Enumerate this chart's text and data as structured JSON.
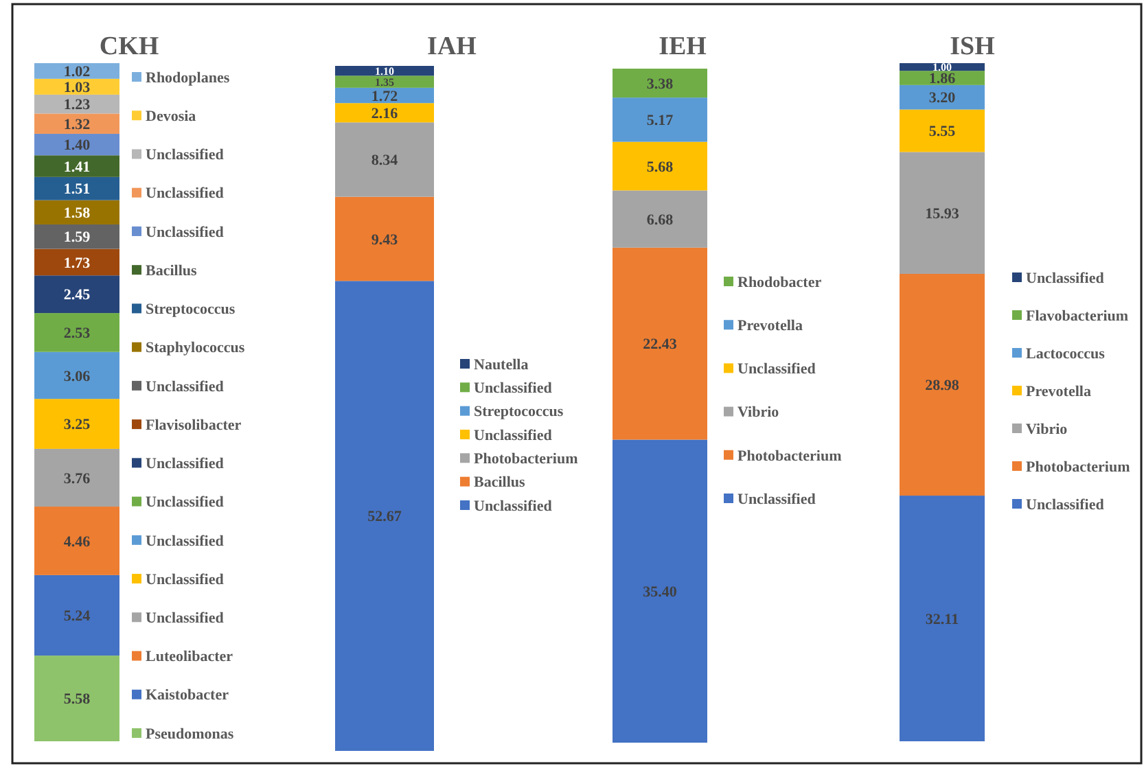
{
  "chart_data": [
    {
      "type": "bar",
      "stacked": true,
      "title": "CKH",
      "categories": [
        null
      ],
      "legend": "right",
      "series": [
        {
          "name": "Pseudomonas",
          "color": "#8fc36b",
          "values": [
            5.58
          ],
          "value_labels": [
            "5.58"
          ]
        },
        {
          "name": "Kaistobacter",
          "color": "#4472c4",
          "values": [
            5.24
          ],
          "value_labels": [
            "5.24"
          ]
        },
        {
          "name": "Luteolibacter",
          "color": "#ed7d31",
          "values": [
            4.46
          ],
          "value_labels": [
            "4.46"
          ]
        },
        {
          "name": "Unclassified",
          "color": "#a5a5a5",
          "values": [
            3.76
          ],
          "value_labels": [
            "3.76"
          ]
        },
        {
          "name": "Unclassified",
          "color": "#ffc000",
          "values": [
            3.25
          ],
          "value_labels": [
            "3.25"
          ]
        },
        {
          "name": "Unclassified",
          "color": "#5b9bd5",
          "values": [
            3.06
          ],
          "value_labels": [
            "3.06"
          ]
        },
        {
          "name": "Unclassified",
          "color": "#70ad47",
          "values": [
            2.53
          ],
          "value_labels": [
            "2.53"
          ]
        },
        {
          "name": "Unclassified",
          "color": "#264478",
          "values": [
            2.45
          ],
          "value_labels": [
            "2.45"
          ]
        },
        {
          "name": "Flavisolibacter",
          "color": "#9e480e",
          "values": [
            1.73
          ],
          "value_labels": [
            "1.73"
          ]
        },
        {
          "name": "Unclassified",
          "color": "#636363",
          "values": [
            1.59
          ],
          "value_labels": [
            "1.59"
          ]
        },
        {
          "name": "Staphylococcus",
          "color": "#997300",
          "values": [
            1.58
          ],
          "value_labels": [
            "1.58"
          ]
        },
        {
          "name": "Streptococcus",
          "color": "#255e91",
          "values": [
            1.51
          ],
          "value_labels": [
            "1.51"
          ]
        },
        {
          "name": "Bacillus",
          "color": "#43682b",
          "values": [
            1.41
          ],
          "value_labels": [
            "1.41"
          ]
        },
        {
          "name": "Unclassified",
          "color": "#698ed0",
          "values": [
            1.4
          ],
          "value_labels": [
            "1.40"
          ]
        },
        {
          "name": "Unclassified",
          "color": "#f1975a",
          "values": [
            1.32
          ],
          "value_labels": [
            "1.32"
          ]
        },
        {
          "name": "Unclassified",
          "color": "#b7b7b7",
          "values": [
            1.23
          ],
          "value_labels": [
            "1.23"
          ]
        },
        {
          "name": "Devosia",
          "color": "#ffcd33",
          "values": [
            1.03
          ],
          "value_labels": [
            "1.03"
          ]
        },
        {
          "name": "Rhodoplanes",
          "color": "#7cafdd",
          "values": [
            1.02
          ],
          "value_labels": [
            "1.02"
          ]
        }
      ]
    },
    {
      "type": "bar",
      "stacked": true,
      "title": "IAH",
      "categories": [
        null
      ],
      "legend": "right",
      "series": [
        {
          "name": "Unclassified",
          "color": "#4472c4",
          "values": [
            52.67
          ],
          "value_labels": [
            "52.67"
          ]
        },
        {
          "name": "Bacillus",
          "color": "#ed7d31",
          "values": [
            9.43
          ],
          "value_labels": [
            "9.43"
          ]
        },
        {
          "name": "Photobacterium",
          "color": "#a5a5a5",
          "values": [
            8.34
          ],
          "value_labels": [
            "8.34"
          ]
        },
        {
          "name": "Unclassified",
          "color": "#ffc000",
          "values": [
            2.16
          ],
          "value_labels": [
            "2.16"
          ]
        },
        {
          "name": "Streptococcus",
          "color": "#5b9bd5",
          "values": [
            1.72
          ],
          "value_labels": [
            "1.72"
          ]
        },
        {
          "name": "Unclassified",
          "color": "#70ad47",
          "values": [
            1.35
          ],
          "value_labels": [
            "1.35"
          ]
        },
        {
          "name": "Nautella",
          "color": "#264478",
          "values": [
            1.1
          ],
          "value_labels": [
            "1.10"
          ]
        }
      ]
    },
    {
      "type": "bar",
      "stacked": true,
      "title": "IEH",
      "categories": [
        null
      ],
      "legend": "right",
      "series": [
        {
          "name": "Unclassified",
          "color": "#4472c4",
          "values": [
            35.4
          ],
          "value_labels": [
            "35.40"
          ]
        },
        {
          "name": "Photobacterium",
          "color": "#ed7d31",
          "values": [
            22.43
          ],
          "value_labels": [
            "22.43"
          ]
        },
        {
          "name": "Vibrio",
          "color": "#a5a5a5",
          "values": [
            6.68
          ],
          "value_labels": [
            "6.68"
          ]
        },
        {
          "name": "Unclassified",
          "color": "#ffc000",
          "values": [
            5.68
          ],
          "value_labels": [
            "5.68"
          ]
        },
        {
          "name": "Prevotella",
          "color": "#5b9bd5",
          "values": [
            5.17
          ],
          "value_labels": [
            "5.17"
          ]
        },
        {
          "name": "Rhodobacter",
          "color": "#70ad47",
          "values": [
            3.38
          ],
          "value_labels": [
            "3.38"
          ]
        }
      ]
    },
    {
      "type": "bar",
      "stacked": true,
      "title": "ISH",
      "categories": [
        null
      ],
      "legend": "right",
      "series": [
        {
          "name": "Unclassified",
          "color": "#4472c4",
          "values": [
            32.11
          ],
          "value_labels": [
            "32.11"
          ]
        },
        {
          "name": "Photobacterium",
          "color": "#ed7d31",
          "values": [
            28.98
          ],
          "value_labels": [
            "28.98"
          ]
        },
        {
          "name": "Vibrio",
          "color": "#a5a5a5",
          "values": [
            15.93
          ],
          "value_labels": [
            "15.93"
          ]
        },
        {
          "name": "Prevotella",
          "color": "#ffc000",
          "values": [
            5.55
          ],
          "value_labels": [
            "5.55"
          ]
        },
        {
          "name": "Lactococcus",
          "color": "#5b9bd5",
          "values": [
            3.2
          ],
          "value_labels": [
            "3.20"
          ]
        },
        {
          "name": "Flavobacterium",
          "color": "#70ad47",
          "values": [
            1.86
          ],
          "value_labels": [
            "1.86"
          ]
        },
        {
          "name": "Unclassified",
          "color": "#264478",
          "values": [
            1.0
          ],
          "value_labels": [
            "1.00"
          ]
        }
      ]
    }
  ]
}
